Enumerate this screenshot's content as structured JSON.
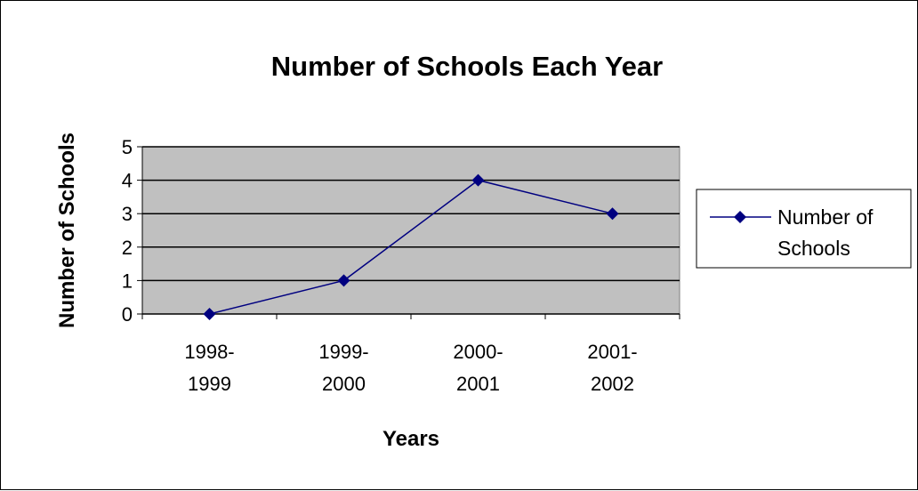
{
  "chart_data": {
    "type": "line",
    "title": "Number of Schools Each Year",
    "xlabel": "Years",
    "ylabel": "Number of Schools",
    "categories": [
      [
        "1998-",
        "1999"
      ],
      [
        "1999-",
        "2000"
      ],
      [
        "2000-",
        "2001"
      ],
      [
        "2001-",
        "2002"
      ]
    ],
    "series": [
      {
        "name": "Number of Schools",
        "legend_lines": [
          "Number of",
          "Schools"
        ],
        "values": [
          0,
          1,
          4,
          3
        ],
        "color": "#000080"
      }
    ],
    "ylim": [
      0,
      5
    ],
    "yticks": [
      0,
      1,
      2,
      3,
      4,
      5
    ],
    "grid": true,
    "plot_background": "#c0c0c0",
    "legend_position": "right"
  }
}
